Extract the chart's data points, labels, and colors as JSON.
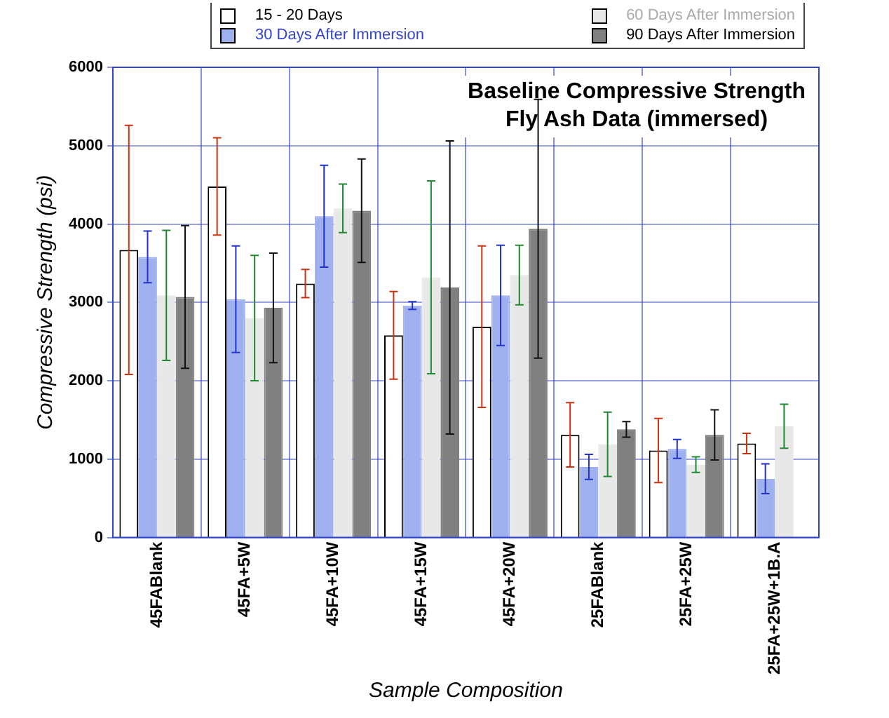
{
  "chart_data": {
    "type": "bar",
    "title": "Baseline Compressive Strength\nFly Ash Data (immersed)",
    "xlabel": "Sample Composition",
    "ylabel": "Compressive Strength (psi)",
    "categories": [
      "45FABlank",
      "45FA+5W",
      "45FA+10W",
      "45FA+15W",
      "45FA+20W",
      "25FABlank",
      "25FA+25W",
      "25FA+25W+1B.A"
    ],
    "series": [
      {
        "name": "15 - 20 Days",
        "color": "#ffffff",
        "values": [
          3670,
          4480,
          3240,
          2580,
          2690,
          1310,
          1110,
          1200
        ],
        "errors": [
          1590,
          620,
          180,
          560,
          1030,
          410,
          410,
          130
        ]
      },
      {
        "name": "30 Days After Immersion",
        "color": "#9fb0ee",
        "values": [
          3580,
          3040,
          4100,
          2960,
          3090,
          900,
          1130,
          750
        ],
        "errors": [
          330,
          680,
          650,
          50,
          640,
          160,
          120,
          190
        ]
      },
      {
        "name": "60 Days After Immersion",
        "color": "#e8e8e8",
        "values": [
          3090,
          2800,
          4200,
          3320,
          3350,
          1190,
          930,
          1420
        ],
        "errors": [
          830,
          800,
          310,
          1230,
          380,
          410,
          100,
          280
        ]
      },
      {
        "name": "90 Days After Immersion",
        "color": "#808080",
        "values": [
          3070,
          2930,
          4170,
          3190,
          3940,
          1380,
          1310,
          null
        ],
        "errors": [
          910,
          700,
          660,
          1870,
          1650,
          100,
          320,
          null
        ]
      }
    ],
    "ylim": [
      0,
      6000
    ],
    "yticks": [
      0,
      1000,
      2000,
      3000,
      4000,
      5000,
      6000
    ],
    "grid": true,
    "legend": "top"
  }
}
